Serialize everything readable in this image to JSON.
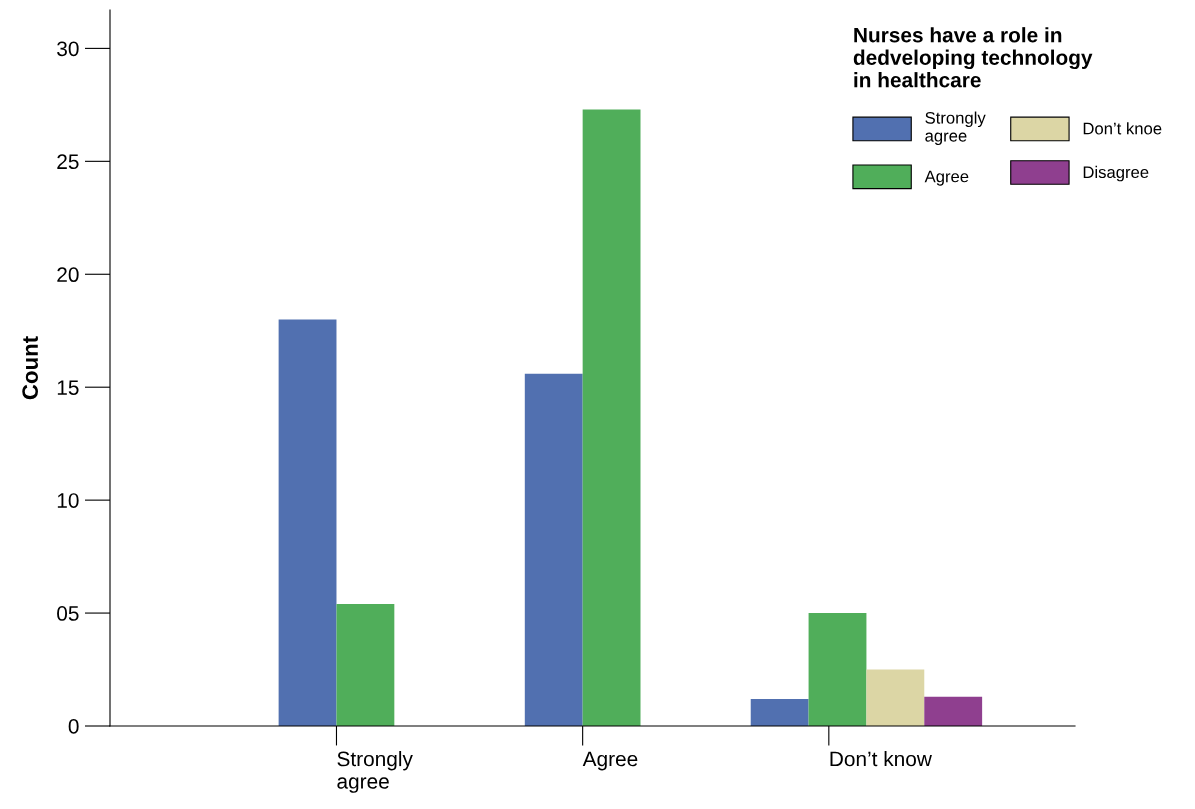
{
  "chart_data": {
    "type": "bar",
    "ylabel": "Count",
    "legend_title": "Nurses have a role in\ndedveloping technology\nin healthcare",
    "categories": [
      "Strongly\nagree",
      "Agree",
      "Don’t know"
    ],
    "series": [
      {
        "name": "Strongly\nagree",
        "color": "#5170b0",
        "values": [
          18,
          15.6,
          1.2
        ]
      },
      {
        "name": "Agree",
        "color": "#50ae5a",
        "values": [
          5.4,
          27.3,
          5
        ]
      },
      {
        "name": "Don’t knoe",
        "color": "#dcd6a5",
        "values": [
          null,
          null,
          2.5
        ]
      },
      {
        "name": "Disagree",
        "color": "#8f3f8f",
        "values": [
          null,
          null,
          1.3
        ]
      }
    ],
    "ylim": [
      0,
      31.7
    ],
    "yticks": [
      0,
      10,
      15,
      20,
      25,
      30,
      {
        "value": 5,
        "label": "05"
      }
    ],
    "legend": "top right",
    "grid": false
  }
}
